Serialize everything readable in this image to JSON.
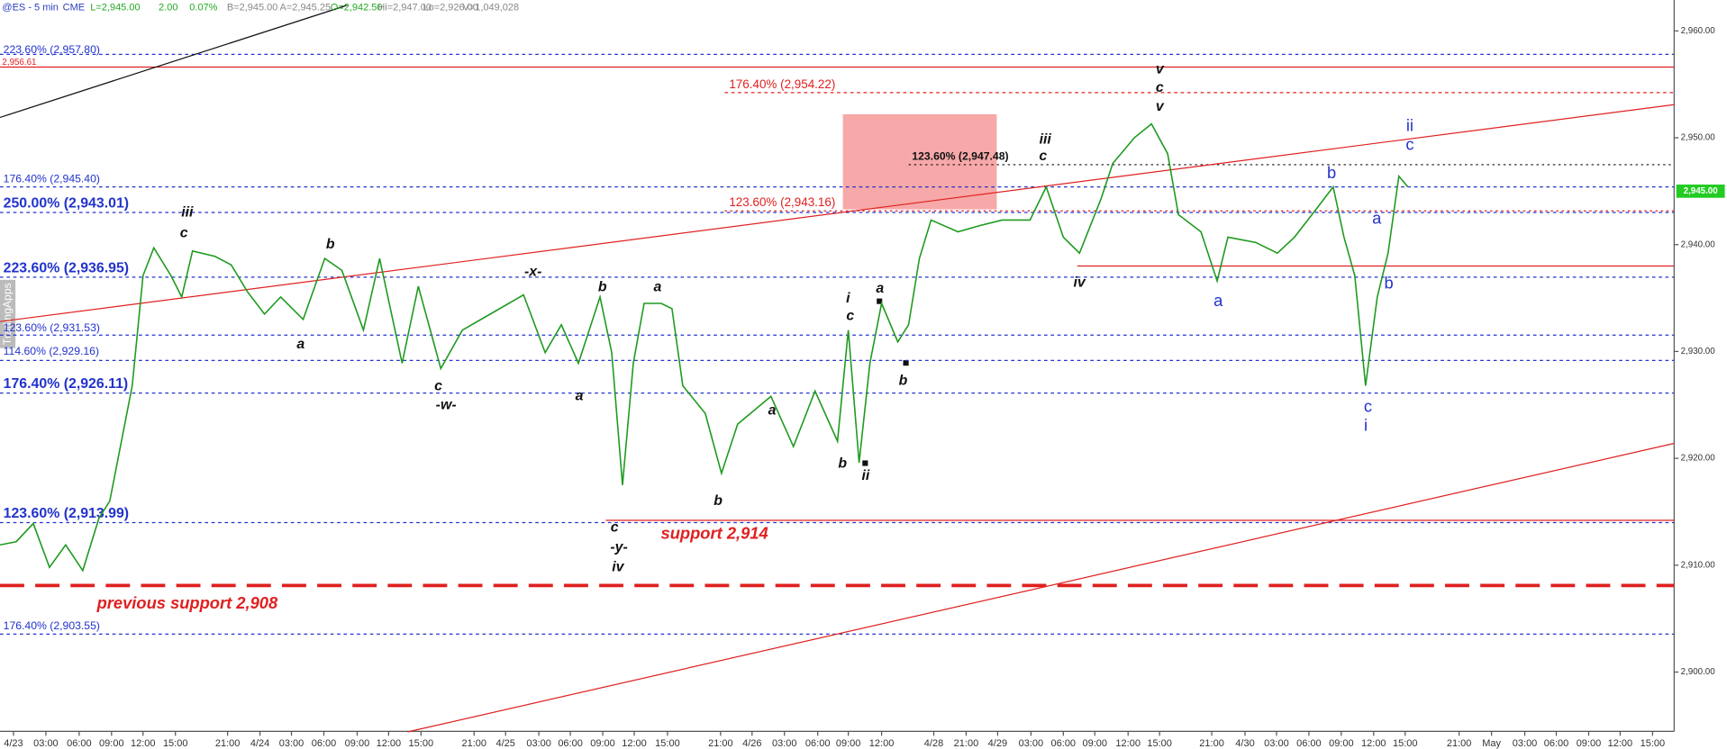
{
  "chart_data": {
    "type": "line",
    "header": [
      {
        "text": "@ES - 5 min",
        "color": "#2a3fbf"
      },
      {
        "text": "CME",
        "color": "#2a3fbf"
      },
      {
        "text": "L=2,945.00",
        "color": "#22aa22"
      },
      {
        "text": "2.00",
        "color": "#22aa22"
      },
      {
        "text": "0.07%",
        "color": "#22aa22"
      },
      {
        "text": "B=2,945.00",
        "color": "#888888"
      },
      {
        "text": "A=2,945.25",
        "color": "#888888"
      },
      {
        "text": "O=2,942.50",
        "color": "#22aa22"
      },
      {
        "text": "Hi=2,947.00",
        "color": "#888888"
      },
      {
        "text": "Lo=2,926.00",
        "color": "#888888"
      },
      {
        "text": "V=1,049,028",
        "color": "#888888"
      }
    ],
    "watermark": "TradingApps",
    "series": [
      {
        "name": "ES",
        "color": "#1f9a1f",
        "x": [
          0,
          18,
          37,
          55,
          73,
          92,
          110,
          122,
          135,
          147,
          159,
          171,
          190,
          202,
          214,
          239,
          257,
          275,
          294,
          312,
          337,
          361,
          380,
          404,
          422,
          447,
          465,
          490,
          514,
          545,
          582,
          606,
          624,
          643,
          667,
          680,
          692,
          704,
          716,
          735,
          747,
          759,
          784,
          802,
          820,
          857,
          882,
          906,
          931,
          943,
          955,
          967,
          980,
          998,
          1010,
          1022,
          1035,
          1065,
          1090,
          1114,
          1145,
          1163,
          1182,
          1200,
          1224,
          1237,
          1261,
          1280,
          1298,
          1310,
          1335,
          1353,
          1365,
          1396,
          1420,
          1439,
          1463,
          1482,
          1494,
          1506,
          1518,
          1531,
          1543,
          1555,
          1565
        ],
        "values": [
          2911.9,
          2912.2,
          2913.9,
          2909.8,
          2911.9,
          2909.5,
          2914.4,
          2916.0,
          2921.6,
          2926.8,
          2937.1,
          2939.7,
          2937.1,
          2935.1,
          2939.4,
          2938.9,
          2938.1,
          2935.6,
          2933.5,
          2935.1,
          2933.0,
          2938.7,
          2937.6,
          2932.0,
          2938.7,
          2928.9,
          2936.1,
          2928.4,
          2932.0,
          2933.5,
          2935.3,
          2929.9,
          2932.5,
          2928.9,
          2935.1,
          2929.9,
          2917.5,
          2928.9,
          2934.5,
          2934.5,
          2934.0,
          2926.8,
          2924.2,
          2918.6,
          2923.2,
          2925.8,
          2921.1,
          2926.3,
          2921.6,
          2932.0,
          2919.6,
          2928.9,
          2934.5,
          2930.9,
          2932.5,
          2938.7,
          2942.3,
          2941.2,
          2941.8,
          2942.3,
          2942.3,
          2945.4,
          2940.7,
          2939.2,
          2944.3,
          2947.6,
          2950.0,
          2951.3,
          2948.5,
          2942.8,
          2941.2,
          2936.6,
          2940.7,
          2940.2,
          2939.2,
          2940.7,
          2943.3,
          2945.4,
          2940.7,
          2937.1,
          2926.8,
          2935.1,
          2939.2,
          2946.4,
          2945.4
        ]
      }
    ],
    "xlim": [
      0,
      1861
    ],
    "ylim": [
      2894.45,
      2962.89
    ],
    "xticks": [
      {
        "value": 15,
        "label": "4/23"
      },
      {
        "value": 51,
        "label": "03:00"
      },
      {
        "value": 88,
        "label": "06:00"
      },
      {
        "value": 124,
        "label": "09:00"
      },
      {
        "value": 159,
        "label": "12:00"
      },
      {
        "value": 195,
        "label": "15:00"
      },
      {
        "value": 253,
        "label": "21:00"
      },
      {
        "value": 289,
        "label": "4/24"
      },
      {
        "value": 324,
        "label": "03:00"
      },
      {
        "value": 360,
        "label": "06:00"
      },
      {
        "value": 397,
        "label": "09:00"
      },
      {
        "value": 432,
        "label": "12:00"
      },
      {
        "value": 468,
        "label": "15:00"
      },
      {
        "value": 527,
        "label": "21:00"
      },
      {
        "value": 562,
        "label": "4/25"
      },
      {
        "value": 599,
        "label": "03:00"
      },
      {
        "value": 634,
        "label": "06:00"
      },
      {
        "value": 670,
        "label": "09:00"
      },
      {
        "value": 705,
        "label": "12:00"
      },
      {
        "value": 742,
        "label": "15:00"
      },
      {
        "value": 801,
        "label": "21:00"
      },
      {
        "value": 836,
        "label": "4/26"
      },
      {
        "value": 872,
        "label": "03:00"
      },
      {
        "value": 909,
        "label": "06:00"
      },
      {
        "value": 943,
        "label": "09:00"
      },
      {
        "value": 980,
        "label": "12:00"
      },
      {
        "value": 1038,
        "label": "4/28"
      },
      {
        "value": 1074,
        "label": "21:00"
      },
      {
        "value": 1109,
        "label": "4/29"
      },
      {
        "value": 1146,
        "label": "03:00"
      },
      {
        "value": 1182,
        "label": "06:00"
      },
      {
        "value": 1217,
        "label": "09:00"
      },
      {
        "value": 1254,
        "label": "12:00"
      },
      {
        "value": 1289,
        "label": "15:00"
      },
      {
        "value": 1347,
        "label": "21:00"
      },
      {
        "value": 1384,
        "label": "4/30"
      },
      {
        "value": 1419,
        "label": "03:00"
      },
      {
        "value": 1455,
        "label": "06:00"
      },
      {
        "value": 1491,
        "label": "09:00"
      },
      {
        "value": 1527,
        "label": "12:00"
      },
      {
        "value": 1562,
        "label": "15:00"
      },
      {
        "value": 1622,
        "label": "21:00"
      },
      {
        "value": 1658,
        "label": "May"
      },
      {
        "value": 1695,
        "label": "03:00"
      },
      {
        "value": 1730,
        "label": "06:00"
      },
      {
        "value": 1766,
        "label": "09:00"
      },
      {
        "value": 1801,
        "label": "12:00"
      },
      {
        "value": 1837,
        "label": "15:00"
      }
    ],
    "yticks": [
      {
        "value": 2900,
        "label": "2,900.00"
      },
      {
        "value": 2910,
        "label": "2,910.00"
      },
      {
        "value": 2920,
        "label": "2,920.00"
      },
      {
        "value": 2930,
        "label": "2,930.00"
      },
      {
        "value": 2940,
        "label": "2,940.00"
      },
      {
        "value": 2950,
        "label": "2,950.00"
      },
      {
        "value": 2960,
        "label": "2,960.00"
      }
    ],
    "last_price": {
      "value": 2945,
      "label": "2,945.00",
      "color": "#22cc22"
    },
    "levels": [
      {
        "label": "223.60% (2,957.80)",
        "value": 2957.8,
        "color": "#2233cc",
        "style": "dashed"
      },
      {
        "label": "2,956.61",
        "value": 2956.61,
        "color": "#e02020",
        "style": "solid"
      },
      {
        "label": "176.40% (2,954.22)",
        "value": 2954.22,
        "color": "#e02020",
        "style": "dashed"
      },
      {
        "label": "123.60% (2,947.48)",
        "value": 2947.48,
        "color": "#111111",
        "style": "dotted"
      },
      {
        "label": "176.40% (2,945.40)",
        "value": 2945.4,
        "color": "#2233cc",
        "style": "dashed"
      },
      {
        "label": "250.00% (2,943.01)",
        "value": 2943.01,
        "color": "#2233cc",
        "style": "dashed"
      },
      {
        "label": "123.60% (2,943.16)",
        "value": 2943.16,
        "color": "#e02020",
        "style": "dotted"
      },
      {
        "label": "223.60% (2,936.95)",
        "value": 2936.95,
        "color": "#2233cc",
        "style": "dashed"
      },
      {
        "label": "123.60% (2,931.53)",
        "value": 2931.53,
        "color": "#2233cc",
        "style": "dashed"
      },
      {
        "label": "114.60% (2,929.16)",
        "value": 2929.16,
        "color": "#2233cc",
        "style": "dashed"
      },
      {
        "label": "176.40% (2,926.11)",
        "value": 2926.11,
        "color": "#2233cc",
        "style": "dashed"
      },
      {
        "label": "123.60% (2,913.99)",
        "value": 2913.99,
        "color": "#2233cc",
        "style": "dashed"
      },
      {
        "label": "176.40% (2,903.55)",
        "value": 2903.55,
        "color": "#2233cc",
        "style": "dashed"
      },
      {
        "label": "support 2,914",
        "value": 2914.2,
        "color": "#e02020",
        "style": "solid"
      },
      {
        "label": "previous support 2,908",
        "value": 2908.1,
        "color": "#e02020",
        "style": "longdash"
      },
      {
        "value": 2938.0,
        "color": "#e02020",
        "style": "solid"
      }
    ],
    "trendlines": [
      {
        "x": [
          0,
          1861
        ],
        "y": [
          2932.8,
          2953.1
        ],
        "color": "#e02020"
      },
      {
        "x": [
          453,
          1861
        ],
        "y": [
          2894.4,
          2921.4
        ],
        "color": "#e02020"
      },
      {
        "x": [
          0,
          386
        ],
        "y": [
          2951.9,
          2962.4
        ],
        "color": "#111111"
      }
    ],
    "zone": {
      "x": [
        937,
        1108
      ],
      "y": [
        2943.3,
        2952.2
      ],
      "color": "#f7a8a8"
    },
    "annotations": [
      {
        "text": "iii",
        "color": "#111111"
      },
      {
        "text": "c",
        "color": "#111111"
      },
      {
        "text": "b",
        "color": "#111111"
      },
      {
        "text": "a",
        "color": "#111111"
      },
      {
        "text": "c",
        "color": "#111111"
      },
      {
        "text": "-w-",
        "color": "#111111"
      },
      {
        "text": "-x-",
        "color": "#111111"
      },
      {
        "text": "b",
        "color": "#111111"
      },
      {
        "text": "a",
        "color": "#111111"
      },
      {
        "text": "c",
        "color": "#111111"
      },
      {
        "text": "-y-",
        "color": "#111111"
      },
      {
        "text": "iv",
        "color": "#111111"
      },
      {
        "text": "a",
        "color": "#111111"
      },
      {
        "text": "b",
        "color": "#111111"
      },
      {
        "text": "a",
        "color": "#111111"
      },
      {
        "text": "i",
        "color": "#111111"
      },
      {
        "text": "c",
        "color": "#111111"
      },
      {
        "text": "a",
        "color": "#111111"
      },
      {
        "text": "b",
        "color": "#111111"
      },
      {
        "text": "b",
        "color": "#111111"
      },
      {
        "text": "ii",
        "color": "#111111"
      },
      {
        "text": "iii",
        "color": "#111111"
      },
      {
        "text": "c",
        "color": "#111111"
      },
      {
        "text": "iv",
        "color": "#111111"
      },
      {
        "text": "v",
        "color": "#111111"
      },
      {
        "text": "c",
        "color": "#111111"
      },
      {
        "text": "v",
        "color": "#111111"
      },
      {
        "text": "a",
        "color": "#2233cc"
      },
      {
        "text": "b",
        "color": "#2233cc"
      },
      {
        "text": "a",
        "color": "#2233cc"
      },
      {
        "text": "b",
        "color": "#2233cc"
      },
      {
        "text": "c",
        "color": "#2233cc"
      },
      {
        "text": "i",
        "color": "#2233cc"
      },
      {
        "text": "ii",
        "color": "#2233cc"
      },
      {
        "text": "c",
        "color": "#2233cc"
      }
    ]
  }
}
